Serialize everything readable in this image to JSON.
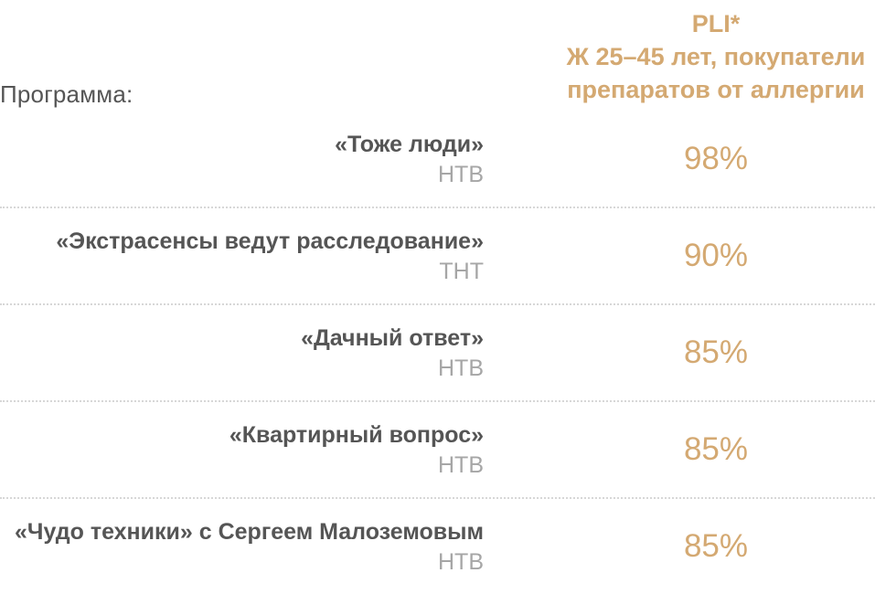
{
  "header": {
    "program_label": "Программа:",
    "metric": {
      "line1": "PLI*",
      "line2": "Ж 25–45 лет, покупатели",
      "line3": "препаратов от аллергии"
    }
  },
  "rows": [
    {
      "title": "«Тоже люди»",
      "channel": "НТВ",
      "value": "98%"
    },
    {
      "title": "«Экстрасенсы ведут расследование»",
      "channel": "ТНТ",
      "value": "90%"
    },
    {
      "title": "«Дачный ответ»",
      "channel": "НТВ",
      "value": "85%"
    },
    {
      "title": "«Квартирный вопрос»",
      "channel": "НТВ",
      "value": "85%"
    },
    {
      "title": "«Чудо техники» с Сергеем Малоземовым",
      "channel": "НТВ",
      "value": "85%"
    }
  ],
  "colors": {
    "accent": "#d4a972",
    "title_text": "#555555",
    "channel_text": "#a6a6a6",
    "divider": "#d7d7d7"
  }
}
